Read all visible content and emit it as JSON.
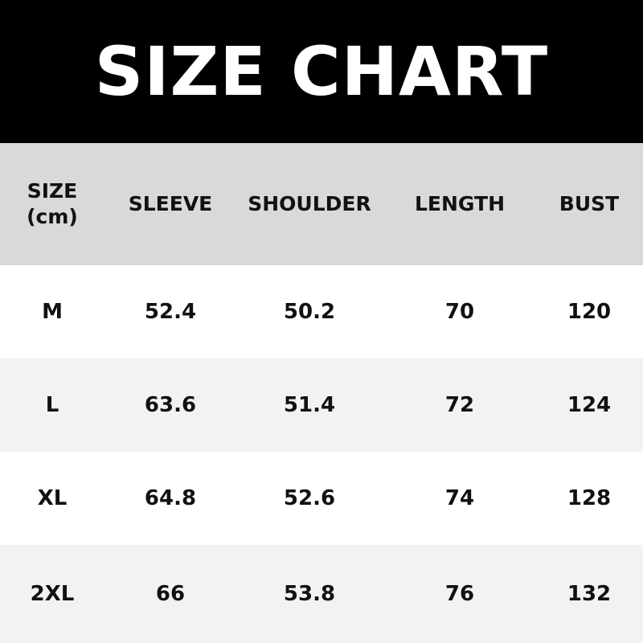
{
  "title": "SIZE CHART",
  "colors": {
    "title_bg": "#000000",
    "header_bg": "#d9d9d9",
    "row_alt_bg": "#f2f2f2",
    "row_bg": "#ffffff"
  },
  "table": {
    "headers": [
      "SIZE\n(cm)",
      "SLEEVE",
      "SHOULDER",
      "LENGTH",
      "BUST"
    ],
    "rows": [
      [
        "M",
        "52.4",
        "50.2",
        "70",
        "120"
      ],
      [
        "L",
        "63.6",
        "51.4",
        "72",
        "124"
      ],
      [
        "XL",
        "64.8",
        "52.6",
        "74",
        "128"
      ],
      [
        "2XL",
        "66",
        "53.8",
        "76",
        "132"
      ]
    ]
  }
}
